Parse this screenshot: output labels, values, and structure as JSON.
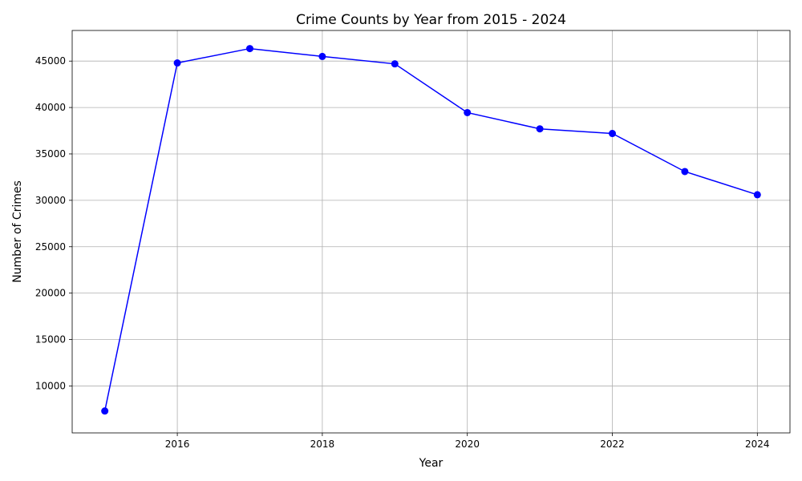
{
  "chart_data": {
    "type": "line",
    "title": "Crime Counts by Year from 2015 - 2024",
    "xlabel": "Year",
    "ylabel": "Number of Crimes",
    "x": [
      2015,
      2016,
      2017,
      2018,
      2019,
      2020,
      2021,
      2022,
      2023,
      2024
    ],
    "series": [
      {
        "values": [
          7300,
          44800,
          46350,
          45500,
          44700,
          39450,
          37700,
          37200,
          33100,
          30600
        ],
        "color": "#0000ff",
        "marker": "circle"
      }
    ],
    "xlim": [
      2014.55,
      2024.45
    ],
    "ylim": [
      4940,
      48300
    ],
    "xticks": [
      2016,
      2018,
      2020,
      2022,
      2024
    ],
    "yticks": [
      10000,
      15000,
      20000,
      25000,
      30000,
      35000,
      40000,
      45000
    ],
    "grid": true,
    "legend": "none"
  }
}
